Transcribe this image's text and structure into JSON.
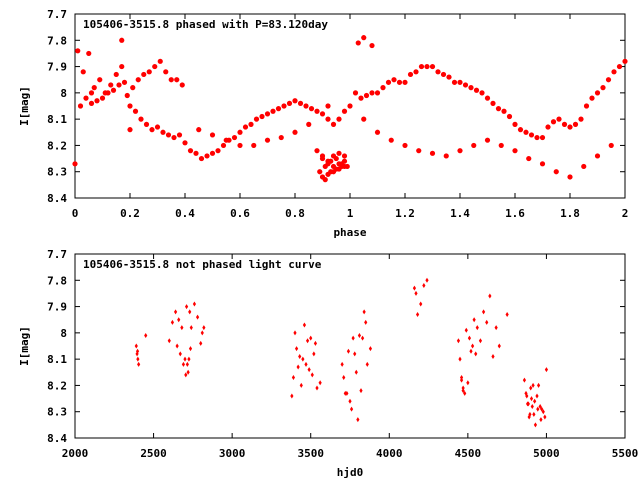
{
  "chart_data": [
    {
      "type": "scatter",
      "title": "105406-3515.8 phased with P=83.120day",
      "xlabel": "phase",
      "ylabel": "I[mag]",
      "xlim": [
        0,
        2
      ],
      "ylim": [
        8.4,
        7.7
      ],
      "y_inverted": true,
      "x_ticks": [
        0,
        0.2,
        0.4,
        0.6,
        0.8,
        1,
        1.2,
        1.4,
        1.6,
        1.8,
        2
      ],
      "y_ticks": [
        7.7,
        7.8,
        7.9,
        8,
        8.1,
        8.2,
        8.3,
        8.4
      ],
      "grid": false,
      "marker_color": "#ff0000",
      "marker": "filled-circle",
      "series": [
        {
          "x": [
            0.01,
            0.03,
            0.05,
            0.07,
            0.09,
            0.11,
            0.13,
            0.15,
            0.17,
            0.19,
            0.21,
            0.23,
            0.25,
            0.27,
            0.29,
            0.31,
            0.33,
            0.35,
            0.37,
            0.39,
            0.02,
            0.04,
            0.06,
            0.08,
            0.1,
            0.12,
            0.14,
            0.16,
            0.18,
            0.2,
            0.22,
            0.24,
            0.26,
            0.28,
            0.3,
            0.32,
            0.34,
            0.36,
            0.38,
            0.4,
            0.42,
            0.44,
            0.46,
            0.48,
            0.5,
            0.52,
            0.54,
            0.56,
            0.58,
            0.6,
            0.62,
            0.64,
            0.66,
            0.68,
            0.7,
            0.72,
            0.74,
            0.76,
            0.78,
            0.8,
            0.82,
            0.84,
            0.86,
            0.88,
            0.9,
            0.92,
            0.94,
            0.96,
            0.98,
            1.0,
            1.02,
            1.04,
            1.06,
            1.08,
            1.1,
            1.12,
            1.14,
            1.16,
            1.18,
            1.2,
            1.22,
            1.24,
            1.26,
            1.28,
            1.3,
            1.32,
            1.34,
            1.36,
            1.38,
            1.4,
            1.42,
            1.44,
            1.46,
            1.48,
            1.5,
            1.52,
            1.54,
            1.56,
            1.58,
            1.6,
            1.62,
            1.64,
            1.66,
            1.68,
            1.7,
            1.72,
            1.74,
            1.76,
            1.78,
            1.8,
            1.82,
            1.84,
            1.86,
            1.88,
            1.9,
            1.92,
            1.94,
            1.96,
            1.98,
            2.0,
            0.45,
            0.5,
            0.55,
            0.6,
            0.65,
            0.7,
            0.75,
            0.8,
            0.85,
            1.05,
            1.1,
            1.15,
            1.2,
            1.25,
            1.3,
            1.35,
            1.4,
            1.45,
            1.5,
            1.55,
            1.6,
            1.65,
            1.7,
            1.75,
            1.8,
            1.85,
            1.9,
            1.95,
            0.9,
            0.92,
            0.94,
            0.96,
            0.98,
            0.91,
            0.93,
            0.95,
            0.97,
            0.89,
            0.9,
            0.92,
            0.94,
            0.96,
            0.98,
            0.91,
            0.93,
            0.95,
            0.97,
            0.99,
            0.88,
            0.9,
            0.92,
            0.94,
            0.96,
            0.98,
            0.17,
            0.06,
            1.08,
            0.92,
            0.0,
            1.05,
            1.03,
            0.2
          ],
          "y": [
            7.84,
            7.92,
            7.85,
            7.98,
            7.95,
            8.0,
            7.97,
            7.93,
            7.9,
            8.01,
            7.98,
            7.95,
            7.93,
            7.92,
            7.9,
            7.88,
            7.92,
            7.95,
            7.95,
            7.97,
            8.05,
            8.02,
            8.04,
            8.03,
            8.02,
            8.0,
            7.99,
            7.97,
            7.96,
            8.05,
            8.07,
            8.1,
            8.12,
            8.14,
            8.13,
            8.15,
            8.16,
            8.17,
            8.16,
            8.19,
            8.22,
            8.23,
            8.25,
            8.24,
            8.23,
            8.22,
            8.2,
            8.18,
            8.17,
            8.15,
            8.13,
            8.12,
            8.1,
            8.09,
            8.08,
            8.07,
            8.06,
            8.05,
            8.04,
            8.03,
            8.04,
            8.05,
            8.06,
            8.07,
            8.08,
            8.1,
            8.12,
            8.1,
            8.07,
            8.05,
            8.0,
            8.02,
            8.01,
            8.0,
            8.0,
            7.98,
            7.96,
            7.95,
            7.96,
            7.96,
            7.93,
            7.92,
            7.9,
            7.9,
            7.9,
            7.92,
            7.93,
            7.94,
            7.96,
            7.96,
            7.97,
            7.98,
            7.99,
            8.0,
            8.02,
            8.04,
            8.06,
            8.07,
            8.09,
            8.12,
            8.14,
            8.15,
            8.16,
            8.17,
            8.17,
            8.13,
            8.11,
            8.1,
            8.12,
            8.13,
            8.12,
            8.1,
            8.05,
            8.02,
            8.0,
            7.98,
            7.95,
            7.92,
            7.9,
            7.88,
            8.14,
            8.16,
            8.18,
            8.2,
            8.2,
            8.18,
            8.17,
            8.15,
            8.12,
            8.1,
            8.15,
            8.18,
            8.2,
            8.22,
            8.23,
            8.24,
            8.22,
            8.2,
            8.18,
            8.2,
            8.22,
            8.25,
            8.27,
            8.3,
            8.32,
            8.28,
            8.24,
            8.2,
            8.25,
            8.27,
            8.28,
            8.27,
            8.26,
            8.28,
            8.3,
            8.29,
            8.28,
            8.3,
            8.32,
            8.31,
            8.3,
            8.29,
            8.28,
            8.33,
            8.26,
            8.25,
            8.27,
            8.28,
            8.22,
            8.24,
            8.26,
            8.24,
            8.23,
            8.24,
            7.8,
            8.0,
            7.82,
            8.05,
            8.27,
            7.79,
            7.81,
            8.14
          ]
        }
      ],
      "annotations": []
    },
    {
      "type": "scatter",
      "title": "105406-3515.8 not phased light curve",
      "xlabel": "hjd0",
      "ylabel": "I[mag]",
      "xlim": [
        2000,
        5500
      ],
      "ylim": [
        8.4,
        7.7
      ],
      "y_inverted": true,
      "x_ticks": [
        2000,
        2500,
        3000,
        3500,
        4000,
        4500,
        5000,
        5500
      ],
      "y_ticks": [
        7.7,
        7.8,
        7.9,
        8,
        8.1,
        8.2,
        8.3,
        8.4
      ],
      "grid": false,
      "marker_color": "#ff0000",
      "marker": "diamond",
      "series": [
        {
          "x": [
            2390,
            2395,
            2400,
            2405,
            2398,
            2450,
            2600,
            2620,
            2640,
            2660,
            2680,
            2700,
            2710,
            2720,
            2730,
            2740,
            2760,
            2780,
            2800,
            2810,
            2820,
            2650,
            2670,
            2690,
            2705,
            2715,
            2725,
            2735,
            3380,
            3390,
            3400,
            3410,
            3420,
            3430,
            3440,
            3450,
            3460,
            3480,
            3500,
            3520,
            3540,
            3560,
            3470,
            3490,
            3510,
            3530,
            3700,
            3720,
            3740,
            3760,
            3780,
            3800,
            3820,
            3840,
            3860,
            3880,
            3710,
            3730,
            3750,
            3770,
            3790,
            3810,
            3830,
            3850,
            4160,
            4170,
            4180,
            4200,
            4220,
            4240,
            4440,
            4450,
            4460,
            4470,
            4480,
            4500,
            4520,
            4540,
            4560,
            4580,
            4600,
            4620,
            4640,
            4660,
            4680,
            4700,
            4750,
            4460,
            4470,
            4490,
            4510,
            4530,
            4550,
            4860,
            4870,
            4880,
            4890,
            4900,
            4910,
            4920,
            4930,
            4940,
            4950,
            4960,
            4970,
            4980,
            4990,
            5000,
            4875,
            4885,
            4895,
            4905,
            4915,
            4925,
            4945,
            4965
          ],
          "y": [
            8.05,
            8.08,
            8.1,
            8.12,
            8.07,
            8.01,
            8.03,
            7.96,
            7.92,
            7.95,
            7.98,
            8.1,
            7.9,
            8.15,
            7.92,
            7.98,
            7.89,
            7.94,
            8.04,
            8.0,
            7.98,
            8.05,
            8.08,
            8.12,
            8.16,
            8.12,
            8.1,
            8.06,
            8.24,
            8.17,
            8.0,
            8.06,
            8.13,
            8.09,
            8.2,
            8.1,
            7.97,
            8.03,
            8.02,
            8.08,
            8.21,
            8.19,
            8.12,
            8.14,
            8.16,
            8.04,
            8.12,
            8.23,
            8.07,
            8.29,
            8.08,
            8.33,
            8.22,
            7.92,
            8.12,
            8.06,
            8.17,
            8.23,
            8.26,
            8.02,
            8.15,
            8.01,
            8.02,
            7.96,
            7.83,
            7.85,
            7.93,
            7.89,
            7.82,
            7.8,
            8.03,
            8.1,
            8.17,
            8.21,
            8.23,
            8.19,
            8.07,
            7.95,
            7.98,
            8.03,
            7.92,
            7.96,
            7.86,
            8.09,
            7.98,
            8.05,
            7.93,
            8.18,
            8.22,
            7.99,
            8.02,
            8.05,
            8.08,
            8.18,
            8.23,
            8.27,
            8.32,
            8.21,
            8.28,
            8.31,
            8.35,
            8.24,
            8.2,
            8.28,
            8.29,
            8.3,
            8.32,
            8.14,
            8.24,
            8.27,
            8.31,
            8.25,
            8.2,
            8.26,
            8.29,
            8.33
          ]
        }
      ],
      "annotations": []
    }
  ]
}
